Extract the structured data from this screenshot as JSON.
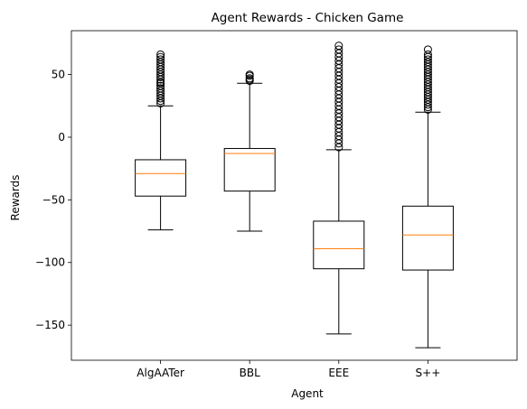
{
  "chart_data": {
    "type": "boxplot",
    "title": "Agent Rewards - Chicken Game",
    "xlabel": "Agent",
    "ylabel": "Rewards",
    "ylim": [
      -178,
      85
    ],
    "yticks": [
      50,
      0,
      -50,
      -100,
      -150
    ],
    "ytick_labels": [
      "50",
      "0",
      "−50",
      "−100",
      "−150"
    ],
    "grid": false,
    "colors": {
      "box": "#000000",
      "median": "#ff7f0e",
      "flier": "#000000"
    },
    "categories": [
      "AlgAATer",
      "BBL",
      "EEE",
      "S++"
    ],
    "boxes": [
      {
        "label": "AlgAATer",
        "whisker_low": -74,
        "q1": -47,
        "median": -29,
        "q3": -18,
        "whisker_high": 25,
        "fliers": [
          27,
          29,
          31,
          33,
          35,
          37,
          39,
          41,
          43,
          44,
          46,
          48,
          50,
          52,
          54,
          56,
          58,
          60,
          62,
          64,
          66
        ]
      },
      {
        "label": "BBL",
        "whisker_low": -75,
        "q1": -43,
        "median": -13,
        "q3": -9,
        "whisker_high": 43,
        "fliers": [
          45,
          46,
          47,
          49,
          50
        ]
      },
      {
        "label": "EEE",
        "whisker_low": -157,
        "q1": -105,
        "median": -89,
        "q3": -67,
        "whisker_high": -10,
        "fliers": [
          -8,
          -5,
          -2,
          1,
          4,
          7,
          10,
          13,
          16,
          19,
          22,
          25,
          28,
          31,
          34,
          37,
          40,
          43,
          46,
          49,
          52,
          55,
          58,
          61,
          64,
          67,
          70,
          73
        ]
      },
      {
        "label": "S++",
        "whisker_low": -168,
        "q1": -106,
        "median": -78,
        "q3": -55,
        "whisker_high": 20,
        "fliers": [
          22,
          24,
          26,
          28,
          30,
          32,
          34,
          36,
          38,
          40,
          42,
          44,
          46,
          48,
          50,
          52,
          54,
          56,
          58,
          60,
          62,
          64,
          66,
          70
        ]
      }
    ]
  }
}
